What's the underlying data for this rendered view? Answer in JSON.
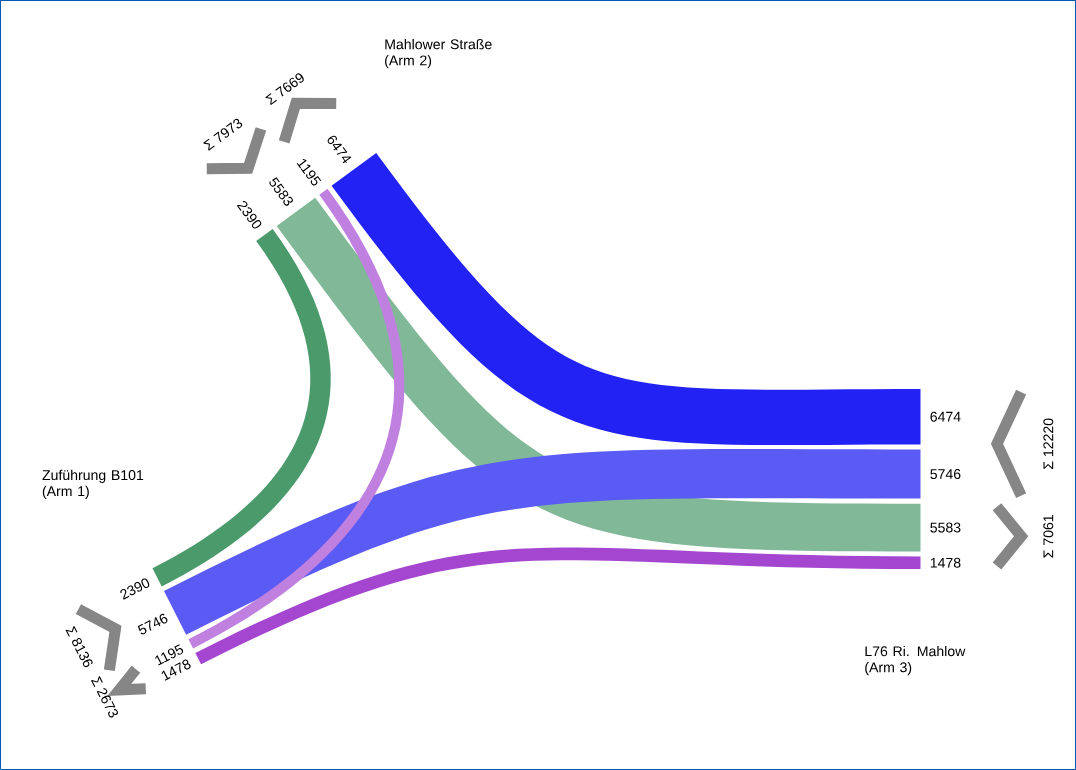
{
  "chart_data": {
    "type": "other",
    "categories": [
      "Zuführung B101 (Arm 1)",
      "Mahlower Straße (Arm 2)",
      "L76 Ri. Mahlow (Arm 3)"
    ],
    "series": [
      {
        "color": "#4a9a6c",
        "values": [
          2390,
          2390,
          null
        ]
      },
      {
        "color": "#80b898",
        "values": [
          null,
          5583,
          5583
        ]
      },
      {
        "color": "#2222f5",
        "values": [
          null,
          6474,
          6474
        ]
      },
      {
        "color": "#5a5af5",
        "values": [
          5746,
          null,
          5746
        ]
      },
      {
        "color": "#c080e0",
        "values": [
          1195,
          1195,
          null
        ]
      },
      {
        "color": "#a446d0",
        "values": [
          1478,
          null,
          1478
        ]
      }
    ],
    "data_labels": true,
    "totals": [
      "Σ 8136",
      "Σ 2673",
      "Σ 7973",
      "Σ 7669",
      "Σ 12220",
      "Σ 7061"
    ]
  }
}
